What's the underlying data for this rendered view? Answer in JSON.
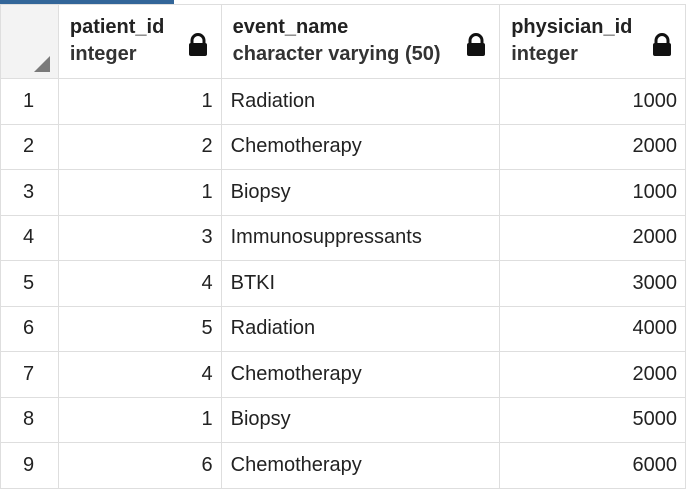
{
  "columns": [
    {
      "name": "patient_id",
      "type": "integer",
      "icon": "lock-icon"
    },
    {
      "name": "event_name",
      "type": "character varying (50)",
      "icon": "lock-icon"
    },
    {
      "name": "physician_id",
      "type": "integer",
      "icon": "lock-icon"
    }
  ],
  "rows": [
    {
      "row": "1",
      "patient_id": "1",
      "event_name": "Radiation",
      "physician_id": "1000"
    },
    {
      "row": "2",
      "patient_id": "2",
      "event_name": "Chemotherapy",
      "physician_id": "2000"
    },
    {
      "row": "3",
      "patient_id": "1",
      "event_name": "Biopsy",
      "physician_id": "1000"
    },
    {
      "row": "4",
      "patient_id": "3",
      "event_name": "Immunosuppressants",
      "physician_id": "2000"
    },
    {
      "row": "5",
      "patient_id": "4",
      "event_name": "BTKI",
      "physician_id": "3000"
    },
    {
      "row": "6",
      "patient_id": "5",
      "event_name": "Radiation",
      "physician_id": "4000"
    },
    {
      "row": "7",
      "patient_id": "4",
      "event_name": "Chemotherapy",
      "physician_id": "2000"
    },
    {
      "row": "8",
      "patient_id": "1",
      "event_name": "Biopsy",
      "physician_id": "5000"
    },
    {
      "row": "9",
      "patient_id": "6",
      "event_name": "Chemotherapy",
      "physician_id": "6000"
    }
  ]
}
